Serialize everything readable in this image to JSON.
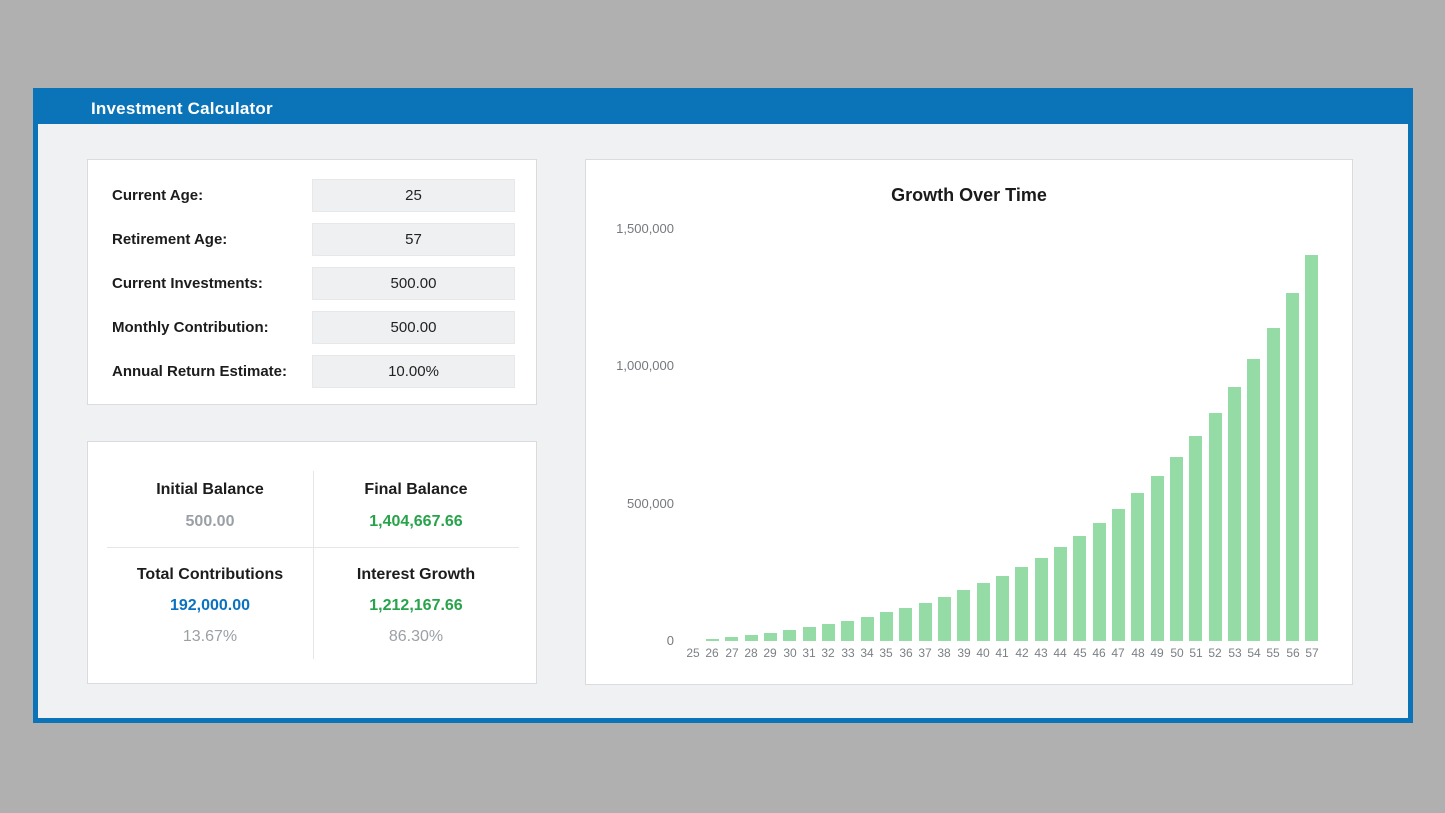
{
  "window": {
    "title": "Investment Calculator"
  },
  "inputs": {
    "rows": [
      {
        "label": "Current Age:",
        "value": "25"
      },
      {
        "label": "Retirement Age:",
        "value": "57"
      },
      {
        "label": "Current Investments:",
        "value": "500.00"
      },
      {
        "label": "Monthly Contribution:",
        "value": "500.00"
      },
      {
        "label": "Annual Return Estimate:",
        "value": "10.00%"
      }
    ]
  },
  "results": {
    "initial_balance": {
      "label": "Initial Balance",
      "value": "500.00"
    },
    "final_balance": {
      "label": "Final Balance",
      "value": "1,404,667.66"
    },
    "total_contributions": {
      "label": "Total Contributions",
      "value": "192,000.00",
      "percent": "13.67%"
    },
    "interest_growth": {
      "label": "Interest Growth",
      "value": "1,212,167.66",
      "percent": "86.30%"
    }
  },
  "colors": {
    "titlebar_blue": "#0b73b8",
    "value_blue": "#0b72c0",
    "value_green": "#27a34a",
    "muted_grey": "#9ba0a6",
    "bar_green": "#94dba6",
    "content_bg": "#eff1f3"
  },
  "chart_data": {
    "type": "bar",
    "title": "Growth Over Time",
    "xlabel": "",
    "ylabel": "",
    "grid": false,
    "legend": false,
    "ylim": [
      0,
      1500000
    ],
    "y_ticks": [
      {
        "label": "0",
        "value": 0
      },
      {
        "label": "500,000",
        "value": 500000
      },
      {
        "label": "1,000,000",
        "value": 1000000
      },
      {
        "label": "1,500,000",
        "value": 1500000
      }
    ],
    "categories": [
      25,
      26,
      27,
      28,
      29,
      30,
      31,
      32,
      33,
      34,
      35,
      36,
      37,
      38,
      39,
      40,
      41,
      42,
      43,
      44,
      45,
      46,
      47,
      48,
      49,
      50,
      51,
      52,
      53,
      54,
      55,
      56,
      57
    ],
    "values": [
      500.0,
      6835.14,
      13833.65,
      21565.0,
      30105.92,
      39541.18,
      49964.45,
      61479.16,
      74199.61,
      88252.07,
      103776.02,
      120925.46,
      139870.75,
      160799.83,
      183920.54,
      209461.52,
      237677.62,
      268849.35,
      303283.74,
      341324.85,
      383348.86,
      429773.4,
      481059.06,
      537715.36,
      600304.37,
      669446.68,
      745829.8,
      830211.26,
      923427.52,
      1026404.69,
      1140166.82,
      1265840.23,
      1404667.66
    ],
    "bar_color": "#94dba6"
  }
}
